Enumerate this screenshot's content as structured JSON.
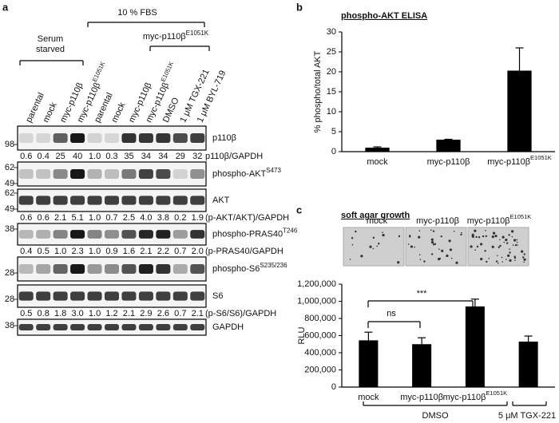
{
  "figure": {
    "panel_labels": [
      "a",
      "b",
      "c"
    ]
  },
  "blot": {
    "lanes": [
      "parental",
      "mock",
      "myc-p110β",
      {
        "text": "myc-p110β",
        "sup": "E1051K"
      },
      "parental",
      "mock",
      "myc-p110β",
      {
        "text": "myc-p110β",
        "sup": "E1051K"
      },
      "DMSO",
      "1 μM TGX-221",
      "1 μM BYL-719"
    ],
    "groups": [
      {
        "lines": [
          "Serum",
          "starved"
        ]
      },
      {
        "lines": [
          "10 % FBS"
        ]
      },
      {
        "lines": [
          {
            "text": "myc-p110β",
            "sup": "E1051K"
          }
        ]
      }
    ],
    "rows": [
      {
        "label": "p110β",
        "markers": [
          98
        ],
        "quant": {
          "values": [
            "0.6",
            "0.4",
            "25",
            "40",
            "1.0",
            "0.3",
            "35",
            "34",
            "34",
            "29",
            "32"
          ],
          "label": "p110β/GAPDH"
        }
      },
      {
        "label": {
          "text": "phospho-AKT",
          "sup": "S473"
        },
        "markers": [
          62,
          49
        ]
      },
      {
        "label": "AKT",
        "markers": [
          62,
          49
        ],
        "quant": {
          "values": [
            "0.6",
            "0.6",
            "2.1",
            "5.1",
            "1.0",
            "0.7",
            "2.5",
            "4.0",
            "3.8",
            "0.2",
            "1.9"
          ],
          "label": "(p-AKT/AKT)/GAPDH"
        }
      },
      {
        "label": {
          "text": "phospho-PRAS40",
          "sup": "T246"
        },
        "markers": [
          38
        ],
        "quant": {
          "values": [
            "0.4",
            "0.5",
            "1.0",
            "2.3",
            "1.0",
            "0.9",
            "1.6",
            "2.1",
            "2.2",
            "0.7",
            "2.0"
          ],
          "label": "(p-PRAS40/GAPDH"
        }
      },
      {
        "label": {
          "text": "phospho-S6",
          "sup": "S235/236"
        },
        "markers": [
          28
        ]
      },
      {
        "label": "S6",
        "markers": [
          28
        ],
        "quant": {
          "values": [
            "0.5",
            "0.8",
            "1.8",
            "3.0",
            "1.0",
            "1.2",
            "2.1",
            "2.9",
            "2.6",
            "0.7",
            "2.1"
          ],
          "label": "(p-S6/S6)/GAPDH"
        }
      },
      {
        "label": "GAPDH",
        "markers": [
          38
        ]
      }
    ]
  },
  "chart_data": [
    {
      "type": "bar",
      "title": "phospho-AKT ELISA",
      "y_label": "% phospho/total AKT",
      "categories": [
        "mock",
        "myc-p110β",
        {
          "text": "myc-p110β",
          "sup": "E1051K"
        }
      ],
      "values": [
        1,
        3,
        20.3
      ],
      "errors": [
        0.2,
        0.1,
        5.7
      ],
      "color": "#000000",
      "ylim": [
        0,
        30
      ],
      "yticks": [
        0,
        5,
        10,
        15,
        20,
        25,
        30
      ]
    },
    {
      "type": "bar",
      "title": "soft agar growth",
      "y_label": "RLU",
      "image_labels": [
        "mock",
        "myc-p110β",
        {
          "text": "myc-p110β",
          "sup": "E1051K"
        }
      ],
      "categories": [
        "mock",
        "myc-p110β",
        {
          "text": "myc-p110β",
          "sup": "E1051K"
        },
        null
      ],
      "values": [
        545000,
        500000,
        940000,
        530000
      ],
      "errors": [
        95000,
        75000,
        85000,
        65000
      ],
      "color": "#000000",
      "ylim": [
        0,
        1200000
      ],
      "yticks": [
        0,
        {
          "value": 200000,
          "label": "200,000"
        },
        {
          "value": 400000,
          "label": "400,000"
        },
        {
          "value": 600000,
          "label": "600,000"
        },
        {
          "value": 800000,
          "label": "800,000"
        },
        {
          "value": 1000000,
          "label": "1,000,000"
        },
        {
          "value": 1200000,
          "label": "1,200,000"
        }
      ],
      "annotations": [
        "***",
        "ns",
        "DMSO",
        "5 μM TGX-221"
      ]
    }
  ]
}
